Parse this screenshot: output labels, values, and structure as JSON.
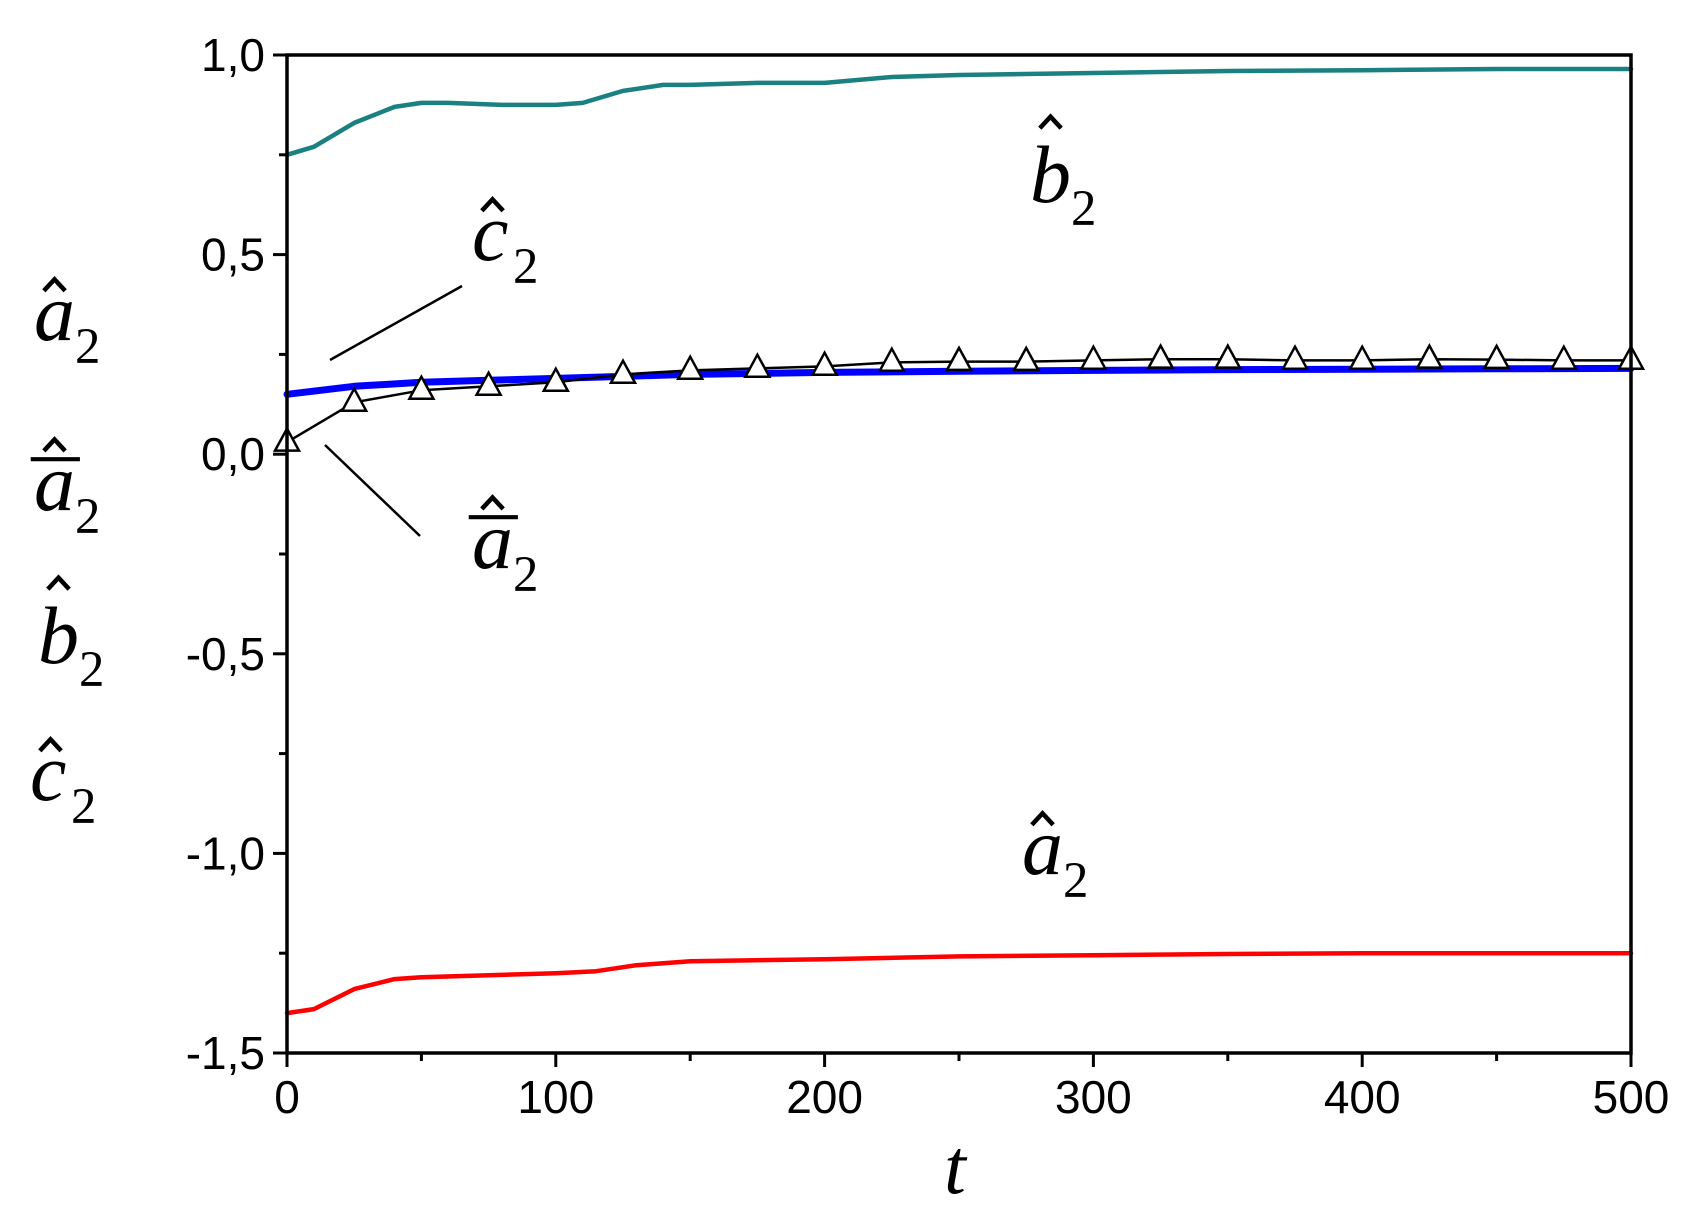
{
  "chart_data": {
    "type": "line",
    "title": "",
    "xlabel": "t",
    "ylabel_lines": [
      {
        "base": "a",
        "sub": "2",
        "accent": "hat"
      },
      {
        "base": "a",
        "sub": "2",
        "accent": "hat-bar"
      },
      {
        "base": "b",
        "sub": "2",
        "accent": "hat"
      },
      {
        "base": "c",
        "sub": "2",
        "accent": "hat"
      }
    ],
    "xlim": [
      0,
      500
    ],
    "ylim": [
      -1.5,
      1.0
    ],
    "x_ticks": [
      0,
      100,
      200,
      300,
      400,
      500
    ],
    "x_tick_labels": [
      "0",
      "100",
      "200",
      "300",
      "400",
      "500"
    ],
    "y_ticks": [
      1.0,
      0.5,
      0.0,
      -0.5,
      -1.0,
      -1.5
    ],
    "y_tick_labels": [
      "1,0",
      "0,5",
      "0,0",
      "-0,5",
      "-1,0",
      "-1,5"
    ],
    "grid": false,
    "series": [
      {
        "color": "#1a8080",
        "x": [
          0,
          10,
          25,
          40,
          50,
          60,
          80,
          100,
          110,
          125,
          140,
          150,
          175,
          200,
          225,
          250,
          300,
          350,
          400,
          450,
          500
        ],
        "y": [
          0.75,
          0.77,
          0.83,
          0.87,
          0.88,
          0.88,
          0.875,
          0.875,
          0.88,
          0.91,
          0.925,
          0.925,
          0.93,
          0.93,
          0.945,
          0.95,
          0.955,
          0.96,
          0.962,
          0.965,
          0.965
        ]
      },
      {
        "color": "#0000ff",
        "x": [
          0,
          25,
          50,
          75,
          100,
          125,
          150,
          200,
          250,
          300,
          350,
          400,
          450,
          500
        ],
        "y": [
          0.15,
          0.17,
          0.18,
          0.185,
          0.19,
          0.195,
          0.2,
          0.205,
          0.208,
          0.21,
          0.212,
          0.213,
          0.214,
          0.215
        ]
      },
      {
        "color": "#000000",
        "marker": "triangle",
        "x": [
          0,
          25,
          50,
          75,
          100,
          125,
          150,
          175,
          200,
          225,
          250,
          275,
          300,
          325,
          350,
          375,
          400,
          425,
          450,
          475,
          500
        ],
        "y": [
          0.03,
          0.13,
          0.16,
          0.17,
          0.18,
          0.2,
          0.21,
          0.215,
          0.22,
          0.23,
          0.232,
          0.232,
          0.235,
          0.238,
          0.238,
          0.235,
          0.235,
          0.238,
          0.237,
          0.235,
          0.235
        ]
      },
      {
        "color": "#ff0000",
        "x": [
          0,
          10,
          25,
          40,
          50,
          75,
          100,
          115,
          130,
          150,
          200,
          250,
          300,
          350,
          400,
          450,
          500
        ],
        "y": [
          -1.4,
          -1.39,
          -1.34,
          -1.315,
          -1.31,
          -1.305,
          -1.3,
          -1.295,
          -1.28,
          -1.27,
          -1.265,
          -1.258,
          -1.255,
          -1.252,
          -1.25,
          -1.25,
          -1.25
        ]
      }
    ],
    "annotations": [
      {
        "base": "b",
        "sub": "2",
        "accent": "hat"
      },
      {
        "base": "c",
        "sub": "2",
        "accent": "hat"
      },
      {
        "base": "a",
        "sub": "2",
        "accent": "hat-bar"
      },
      {
        "base": "a",
        "sub": "2",
        "accent": "hat"
      }
    ]
  }
}
